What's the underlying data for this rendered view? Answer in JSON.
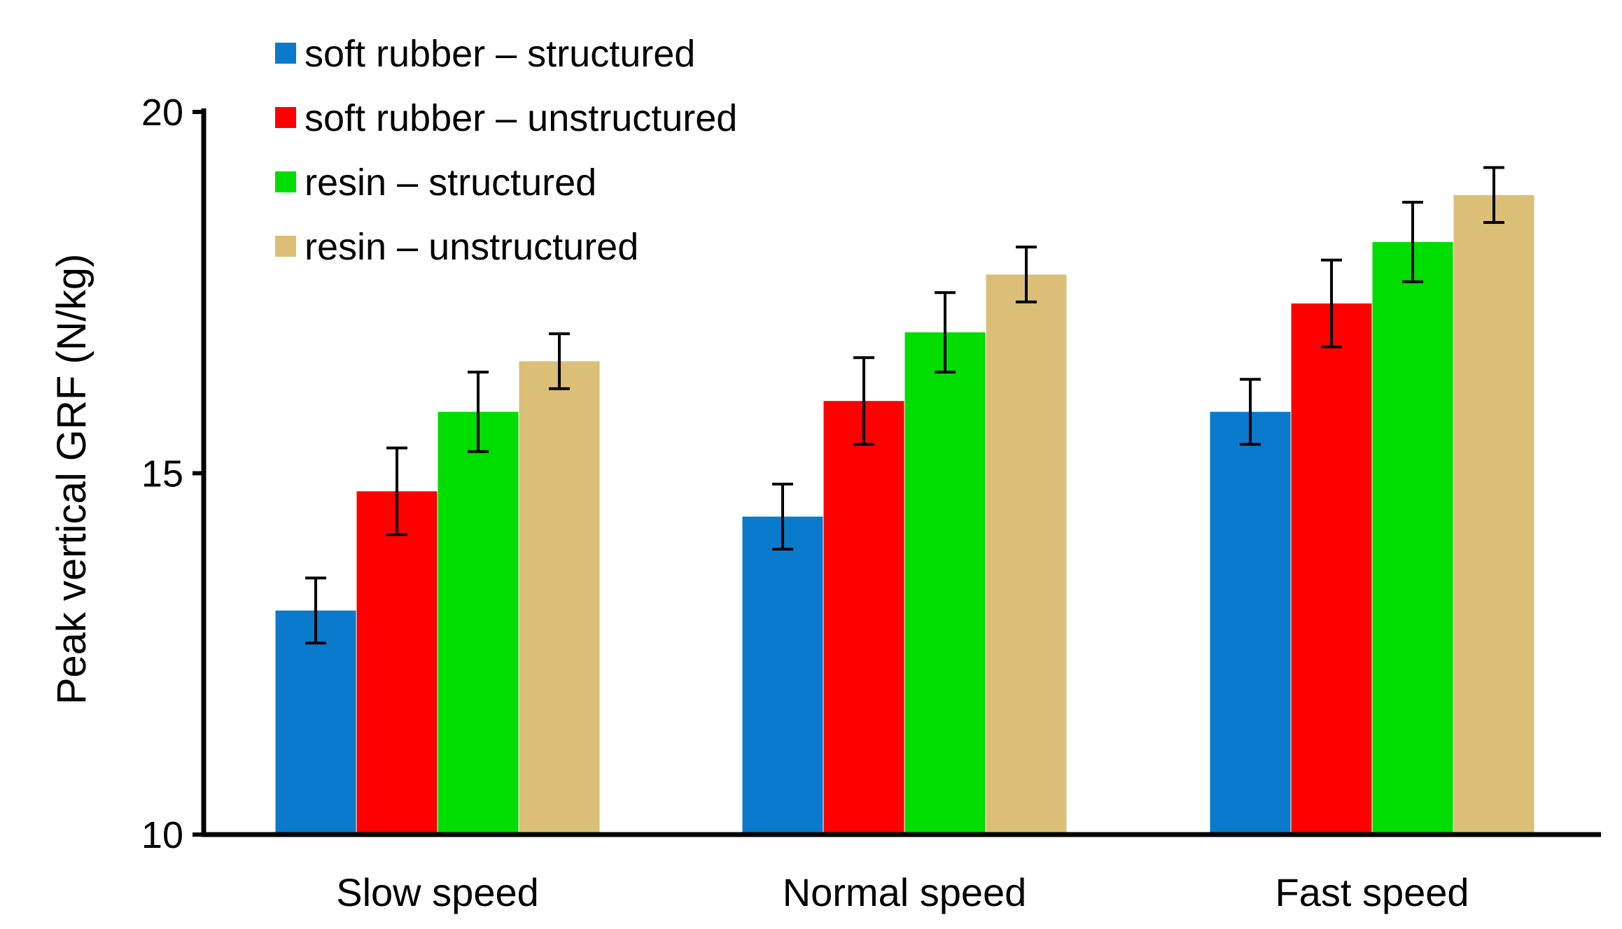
{
  "chart_data": {
    "type": "bar",
    "title": "",
    "xlabel": "",
    "ylabel": "Peak vertical GRF (N/kg)",
    "ylim": [
      10,
      20
    ],
    "yticks": [
      10,
      15,
      20
    ],
    "grid": false,
    "legend_position": "top-left",
    "categories": [
      "Slow speed",
      "Normal speed",
      "Fast speed"
    ],
    "series": [
      {
        "name": "soft rubber – structured",
        "color": "#0a7acc",
        "values": [
          13.1,
          14.4,
          15.85
        ],
        "errors": [
          0.45,
          0.45,
          0.45
        ]
      },
      {
        "name": "soft rubber – unstructured",
        "color": "#ff0000",
        "values": [
          14.75,
          16.0,
          17.35
        ],
        "errors": [
          0.6,
          0.6,
          0.6
        ]
      },
      {
        "name": "resin – structured",
        "color": "#00dd00",
        "values": [
          15.85,
          16.95,
          18.2
        ],
        "errors": [
          0.55,
          0.55,
          0.55
        ]
      },
      {
        "name": "resin – unstructured",
        "color": "#dbbf76",
        "values": [
          16.55,
          17.75,
          18.85
        ],
        "errors": [
          0.38,
          0.38,
          0.38
        ]
      }
    ]
  }
}
